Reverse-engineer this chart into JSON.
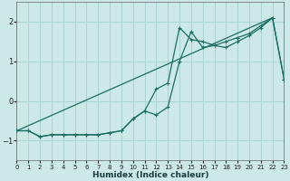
{
  "xlabel": "Humidex (Indice chaleur)",
  "bg_color": "#cce9e7",
  "grid_color": "#a8d4d1",
  "line_color": "#1a6e62",
  "xlim": [
    0,
    23
  ],
  "ylim": [
    -1.5,
    2.5
  ],
  "yticks": [
    -1,
    0,
    1,
    2
  ],
  "xticks": [
    0,
    1,
    2,
    3,
    4,
    5,
    6,
    7,
    8,
    9,
    10,
    11,
    12,
    13,
    14,
    15,
    16,
    17,
    18,
    19,
    20,
    21,
    22,
    23
  ],
  "line1_x": [
    0,
    1,
    2,
    3,
    4,
    5,
    6,
    7,
    8,
    9,
    10,
    11,
    12,
    13,
    14,
    15,
    16,
    17,
    18,
    19,
    20,
    21,
    22,
    23
  ],
  "line1_y": [
    -0.75,
    -0.75,
    -0.9,
    -0.85,
    -0.85,
    -0.85,
    -0.85,
    -0.85,
    -0.8,
    -0.75,
    -0.45,
    -0.25,
    0.3,
    0.45,
    1.85,
    1.55,
    1.5,
    1.4,
    1.5,
    1.6,
    1.7,
    1.9,
    2.1,
    0.55
  ],
  "line2_x": [
    0,
    1,
    2,
    3,
    4,
    5,
    6,
    7,
    8,
    9,
    10,
    11,
    12,
    13,
    14,
    15,
    16,
    17,
    18,
    19,
    20,
    21,
    22,
    23
  ],
  "line2_y": [
    -0.75,
    -0.75,
    -0.9,
    -0.85,
    -0.85,
    -0.85,
    -0.85,
    -0.85,
    -0.8,
    -0.75,
    -0.45,
    -0.25,
    -0.35,
    -0.15,
    1.0,
    1.75,
    1.35,
    1.4,
    1.35,
    1.5,
    1.65,
    1.85,
    2.1,
    0.55
  ],
  "line3_x": [
    0,
    22
  ],
  "line3_y": [
    -0.75,
    2.1
  ]
}
